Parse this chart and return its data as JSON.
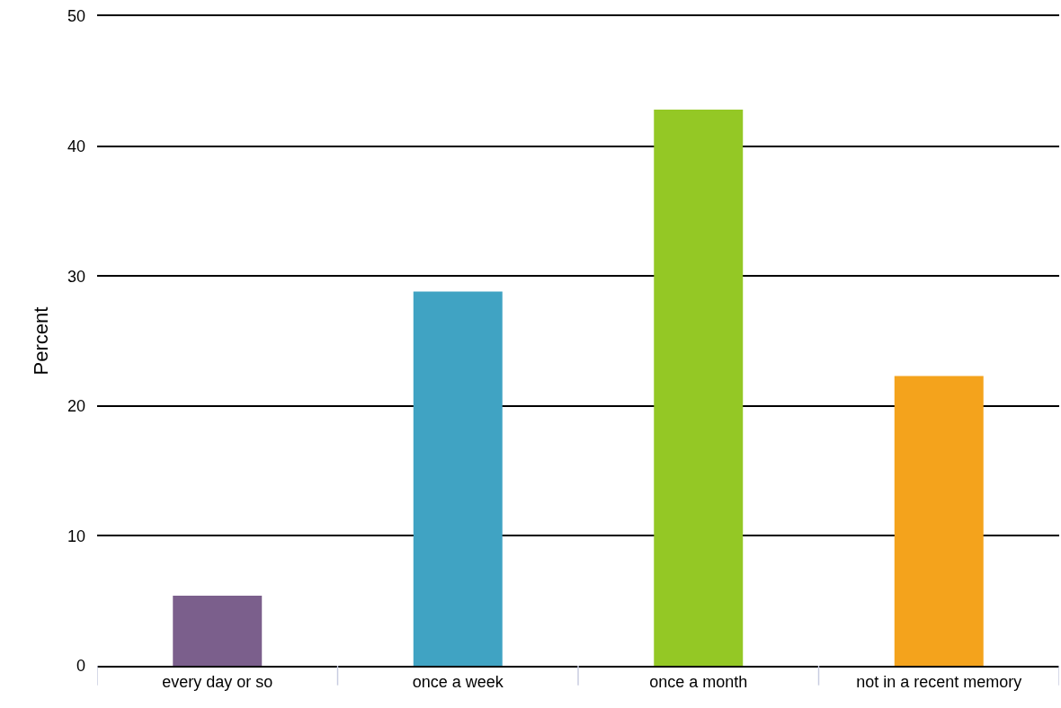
{
  "chart_data": {
    "type": "bar",
    "ylabel": "Percent",
    "categories": [
      "every day or so",
      "once a week",
      "once a month",
      "not in a recent memory"
    ],
    "values": [
      5.4,
      28.8,
      42.8,
      22.3
    ],
    "colors": [
      "#7b5f8c",
      "#40a3c3",
      "#94c825",
      "#f4a31c"
    ],
    "ylim": [
      0,
      50
    ],
    "yticks": [
      0,
      10,
      20,
      30,
      40,
      50
    ],
    "grid": "y"
  }
}
